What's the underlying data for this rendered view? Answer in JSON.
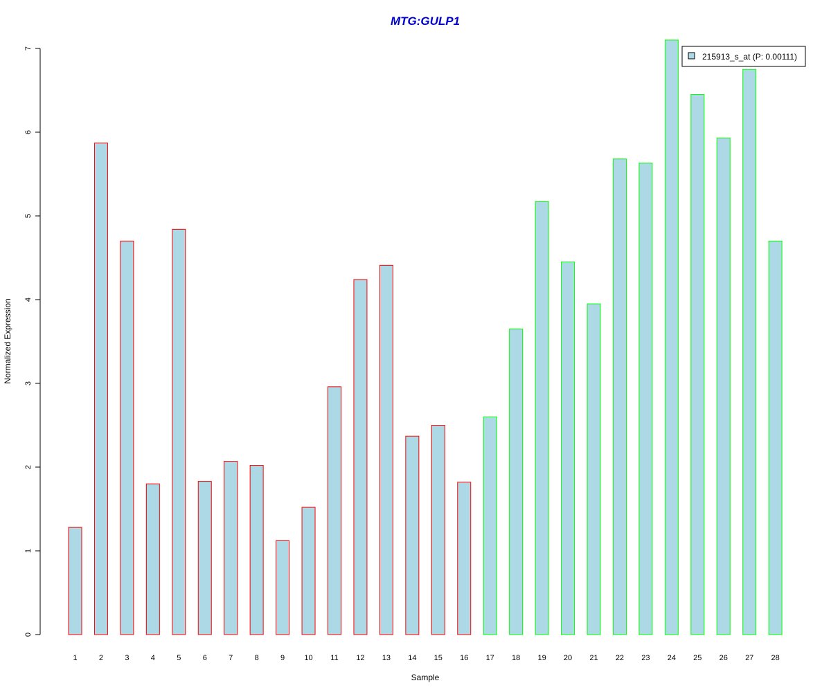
{
  "chart_data": {
    "type": "bar",
    "title": "MTG:GULP1",
    "xlabel": "Sample",
    "ylabel": "Normalized Expression",
    "categories": [
      "1",
      "2",
      "3",
      "4",
      "5",
      "6",
      "7",
      "8",
      "9",
      "10",
      "11",
      "12",
      "13",
      "14",
      "15",
      "16",
      "17",
      "18",
      "19",
      "20",
      "21",
      "22",
      "23",
      "24",
      "25",
      "26",
      "27",
      "28"
    ],
    "series": [
      {
        "name": "215913_s_at (P: 0.00111)",
        "values": [
          1.28,
          5.87,
          4.7,
          1.8,
          4.84,
          1.83,
          2.07,
          2.02,
          1.12,
          1.52,
          2.96,
          4.24,
          4.41,
          2.37,
          2.5,
          1.82,
          2.6,
          3.65,
          5.17,
          4.45,
          3.95,
          5.68,
          5.63,
          7.1,
          6.45,
          5.93,
          6.75,
          4.7
        ]
      }
    ],
    "groups": [
      {
        "samples": "1-16",
        "border_color": "#ff0000"
      },
      {
        "samples": "17-28",
        "border_color": "#00ff00"
      }
    ],
    "bar_fill": "#add8e6",
    "title_color": "#0000cd",
    "yticks": [
      0,
      1,
      2,
      3,
      4,
      5,
      6,
      7
    ],
    "ylim": [
      0,
      7.1
    ],
    "grid": false,
    "legend_position": "top-right"
  }
}
